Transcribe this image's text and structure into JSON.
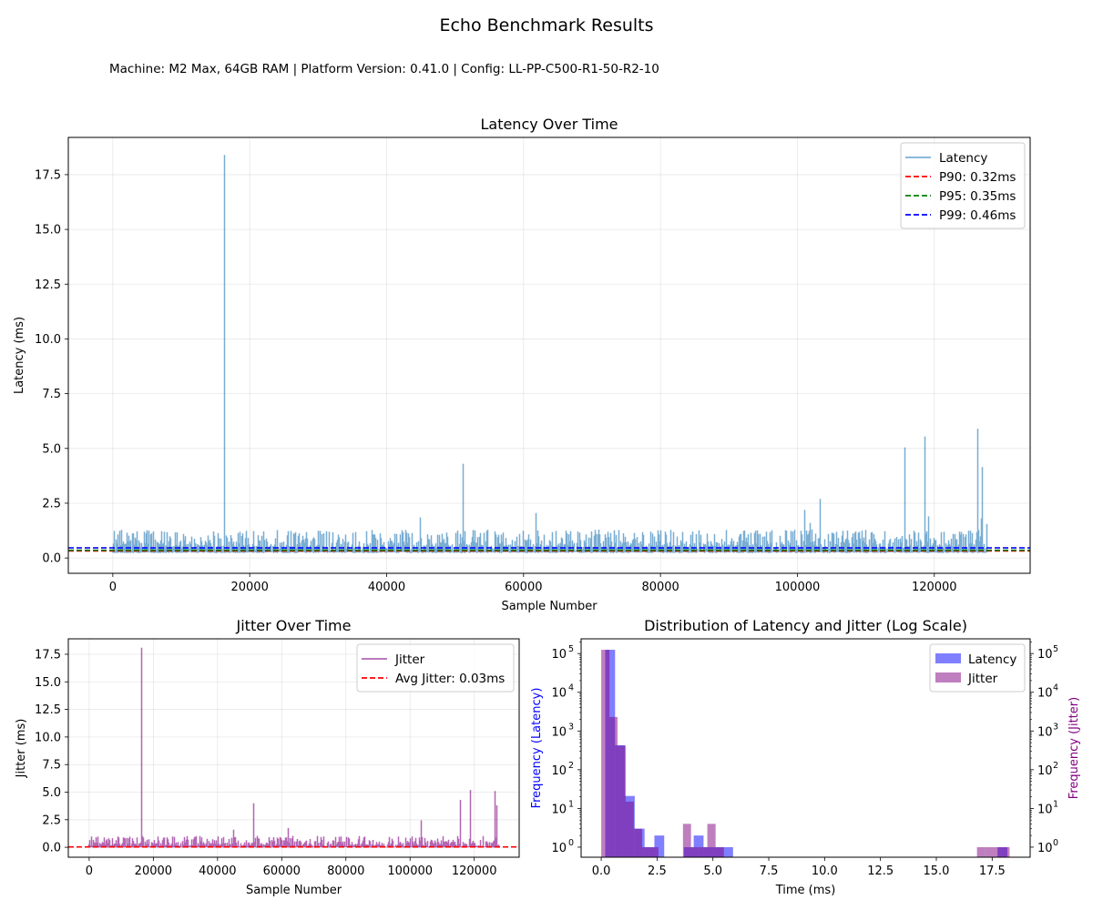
{
  "figure": {
    "title": "Echo Benchmark Results",
    "meta": "Machine: M2 Max, 64GB RAM | Platform Version: 0.41.0 | Config: LL-PP-C500-R1-50-R2-10"
  },
  "chart_data": [
    {
      "id": "latency",
      "type": "line",
      "title": "Latency Over Time",
      "xlabel": "Sample Number",
      "ylabel": "Latency (ms)",
      "xlim": [
        -6500,
        134000
      ],
      "ylim": [
        -0.7,
        19.2
      ],
      "xticks": [
        0,
        20000,
        40000,
        60000,
        80000,
        100000,
        120000
      ],
      "yticks": [
        0.0,
        2.5,
        5.0,
        7.5,
        10.0,
        12.5,
        15.0,
        17.5
      ],
      "ytick_labels": [
        "0.0",
        "2.5",
        "5.0",
        "7.5",
        "10.0",
        "12.5",
        "15.0",
        "17.5"
      ],
      "grid": true,
      "legend_position": "top-right",
      "series": [
        {
          "name": "Latency",
          "color": "#1f77b4",
          "alpha": 0.6,
          "baseline": 0.28,
          "noise_peak": 1.25,
          "n_samples": 127500,
          "spikes": [
            [
              16200,
              18.4
            ],
            [
              44800,
              1.85
            ],
            [
              51100,
              4.3
            ],
            [
              61800,
              2.05
            ],
            [
              101000,
              2.2
            ],
            [
              101800,
              1.6
            ],
            [
              103300,
              2.7
            ],
            [
              115600,
              5.05
            ],
            [
              118600,
              5.55
            ],
            [
              119100,
              1.9
            ],
            [
              126300,
              5.9
            ],
            [
              126800,
              1.8
            ],
            [
              127000,
              4.15
            ],
            [
              127600,
              1.55
            ]
          ]
        }
      ],
      "hlines": [
        {
          "name": "P90: 0.32ms",
          "value": 0.32,
          "color": "#ff0000"
        },
        {
          "name": "P95: 0.35ms",
          "value": 0.35,
          "color": "#008000"
        },
        {
          "name": "P99: 0.46ms",
          "value": 0.46,
          "color": "#0000ff"
        }
      ]
    },
    {
      "id": "jitter",
      "type": "line",
      "title": "Jitter Over Time",
      "xlabel": "Sample Number",
      "ylabel": "Jitter (ms)",
      "xlim": [
        -6500,
        134000
      ],
      "ylim": [
        -0.9,
        18.9
      ],
      "xticks": [
        0,
        20000,
        40000,
        60000,
        80000,
        100000,
        120000
      ],
      "yticks": [
        0.0,
        2.5,
        5.0,
        7.5,
        10.0,
        12.5,
        15.0,
        17.5
      ],
      "ytick_labels": [
        "0.0",
        "2.5",
        "5.0",
        "7.5",
        "10.0",
        "12.5",
        "15.0",
        "17.5"
      ],
      "grid": true,
      "legend_position": "top-right",
      "series": [
        {
          "name": "Jitter",
          "color": "#800080",
          "alpha": 0.6,
          "baseline": 0.02,
          "noise_peak": 1.0,
          "n_samples": 127500,
          "spikes": [
            [
              16200,
              18.1
            ],
            [
              44800,
              1.6
            ],
            [
              51100,
              4.0
            ],
            [
              61800,
              1.75
            ],
            [
              103300,
              2.45
            ],
            [
              115600,
              4.3
            ],
            [
              118600,
              5.2
            ],
            [
              126300,
              5.1
            ],
            [
              127000,
              3.8
            ]
          ]
        }
      ],
      "hlines": [
        {
          "name": "Avg Jitter: 0.03ms",
          "value": 0.03,
          "color": "#ff0000"
        }
      ]
    },
    {
      "id": "distribution",
      "type": "bar",
      "title": "Distribution of Latency and Jitter (Log Scale)",
      "xlabel": "Time (ms)",
      "ylabel_left": "Frequency (Latency)",
      "ylabel_right": "Frequency (Jitter)",
      "yscale": "log",
      "xlim": [
        -0.9,
        19.2
      ],
      "ylim": [
        0.55,
        240000
      ],
      "xticks": [
        0.0,
        2.5,
        5.0,
        7.5,
        10.0,
        12.5,
        15.0,
        17.5
      ],
      "xtick_labels": [
        "0.0",
        "2.5",
        "5.0",
        "7.5",
        "10.0",
        "12.5",
        "15.0",
        "17.5"
      ],
      "yticks": [
        1,
        10,
        100,
        1000,
        10000,
        100000
      ],
      "ytick_labels": [
        "10",
        "10",
        "10",
        "10",
        "10",
        "10"
      ],
      "ytick_exponents": [
        "0",
        "1",
        "2",
        "3",
        "4",
        "5"
      ],
      "grid": false,
      "legend_position": "top-right",
      "series": [
        {
          "name": "Latency",
          "color": "#0000ff",
          "alpha": 0.5,
          "bins": [
            [
              0.18,
              0.62,
              125000
            ],
            [
              0.62,
              1.06,
              430
            ],
            [
              1.06,
              1.5,
              21
            ],
            [
              1.5,
              1.94,
              3
            ],
            [
              1.94,
              2.38,
              1
            ],
            [
              2.38,
              2.82,
              2
            ],
            [
              3.7,
              4.14,
              1
            ],
            [
              4.14,
              4.58,
              2
            ],
            [
              4.58,
              5.02,
              1
            ],
            [
              5.02,
              5.46,
              1
            ],
            [
              5.46,
              5.9,
              1
            ],
            [
              17.74,
              18.18,
              1
            ]
          ]
        },
        {
          "name": "Jitter",
          "color": "#800080",
          "alpha": 0.5,
          "bins": [
            [
              0.0,
              0.37,
              125000
            ],
            [
              0.37,
              0.73,
              2300
            ],
            [
              0.73,
              1.1,
              420
            ],
            [
              1.1,
              1.46,
              15
            ],
            [
              1.46,
              1.83,
              3
            ],
            [
              1.83,
              2.19,
              1
            ],
            [
              2.19,
              2.56,
              1
            ],
            [
              3.66,
              4.02,
              4
            ],
            [
              4.02,
              4.39,
              1
            ],
            [
              4.39,
              4.75,
              1
            ],
            [
              4.75,
              5.12,
              4
            ],
            [
              5.12,
              5.49,
              1
            ],
            [
              16.82,
              17.19,
              1
            ],
            [
              17.19,
              17.55,
              1
            ],
            [
              17.55,
              17.92,
              1
            ],
            [
              17.92,
              18.28,
              1
            ]
          ]
        }
      ]
    }
  ]
}
